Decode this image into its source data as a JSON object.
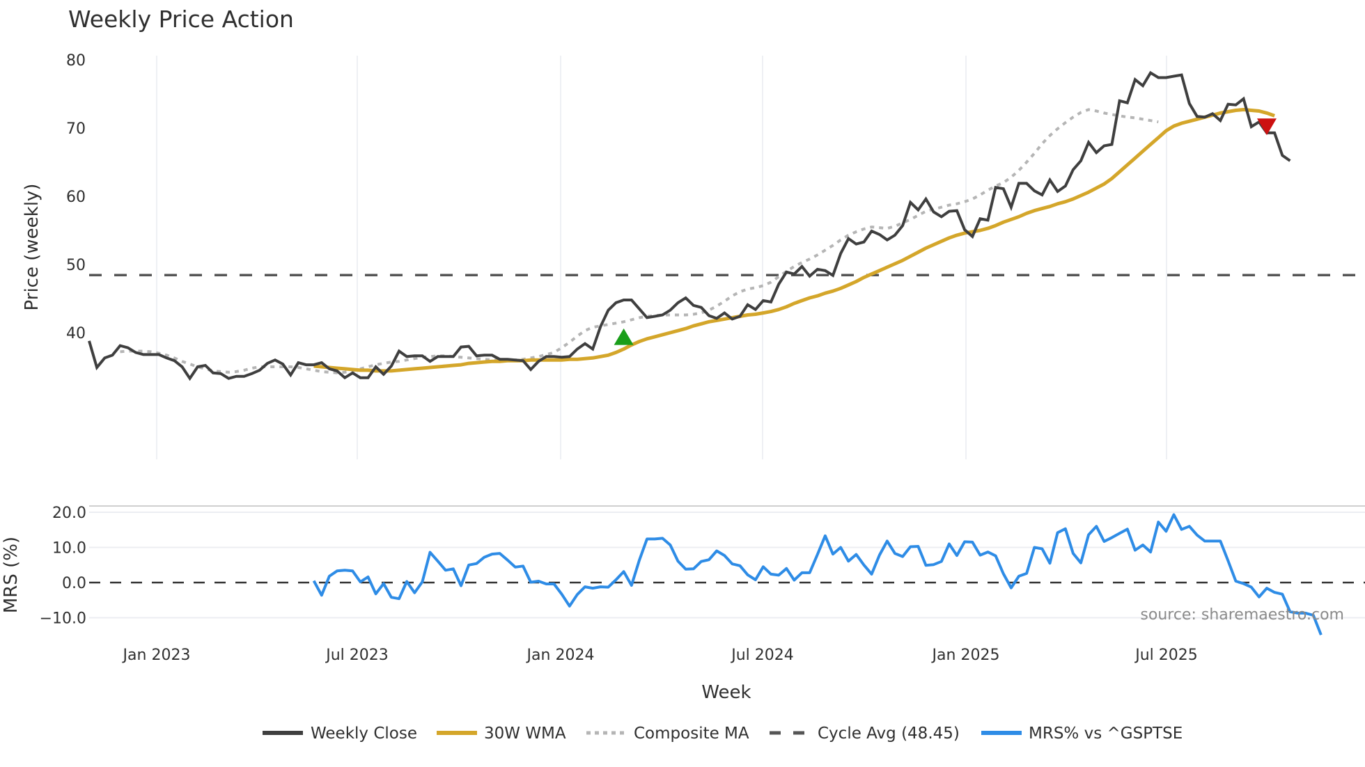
{
  "chart_data": [
    {
      "type": "line",
      "title": "Weekly Price Action",
      "xlabel": "Week",
      "ylabel": "Price (weekly)",
      "ylim": [
        31,
        81
      ],
      "yticks": [
        40,
        50,
        60,
        70,
        80
      ],
      "xticks": [
        "Jan 2023",
        "Jul 2023",
        "Jan 2024",
        "Jul 2024",
        "Jan 2025",
        "Jul 2025"
      ],
      "grid": true,
      "start_week": "2022-11-04",
      "series": [
        {
          "name": "Weekly Close",
          "color": "#3f3f3f",
          "start_index": 0,
          "values": [
            38.8,
            34.9,
            36.3,
            36.7,
            38.1,
            37.8,
            37.1,
            36.8,
            36.8,
            36.8,
            36.3,
            35.9,
            35,
            33.3,
            35,
            35.2,
            34.1,
            34,
            33.3,
            33.6,
            33.6,
            34,
            34.5,
            35.5,
            36,
            35.4,
            33.8,
            35.6,
            35.3,
            35.3,
            35.6,
            34.7,
            34.4,
            33.4,
            34.1,
            33.4,
            33.4,
            35,
            33.9,
            35.1,
            37.3,
            36.5,
            36.6,
            36.6,
            35.8,
            36.5,
            36.5,
            36.5,
            37.9,
            38,
            36.6,
            36.7,
            36.7,
            36.1,
            36.1,
            36,
            35.9,
            34.6,
            35.8,
            36.5,
            36.5,
            36.4,
            36.5,
            37.6,
            38.4,
            37.6,
            40.9,
            43.3,
            44.4,
            44.8,
            44.8,
            43.5,
            42.2,
            42.4,
            42.6,
            43.3,
            44.4,
            45.1,
            44,
            43.7,
            42.5,
            42.1,
            42.9,
            42,
            42.4,
            44.1,
            43.4,
            44.7,
            44.5,
            47.1,
            48.9,
            48.6,
            49.7,
            48.3,
            49.3,
            49.1,
            48.4,
            51.6,
            53.8,
            53,
            53.3,
            54.9,
            54.4,
            53.6,
            54.3,
            55.7,
            59.1,
            58,
            59.6,
            57.7,
            57,
            57.8,
            57.9,
            55.1,
            54.1,
            56.7,
            56.5,
            61.3,
            61.1,
            58.4,
            61.9,
            61.9,
            60.8,
            60.2,
            62.4,
            60.7,
            61.5,
            63.9,
            65.2,
            67.9,
            66.4,
            67.4,
            67.6,
            74,
            73.7,
            77.1,
            76.2,
            78.1,
            77.4,
            77.4,
            77.6,
            77.8,
            73.6,
            71.7,
            71.6,
            72.1,
            71.1,
            73.5,
            73.4,
            74.3,
            70.2,
            70.9,
            69.3,
            69.3,
            66,
            65.2
          ]
        },
        {
          "name": "30W WMA",
          "color": "#d4a62a",
          "start_index": 29,
          "values": [
            35.1,
            35,
            34.9,
            34.8,
            34.7,
            34.6,
            34.5,
            34.5,
            34.4,
            34.4,
            34.4,
            34.5,
            34.6,
            34.7,
            34.8,
            34.9,
            35,
            35.1,
            35.2,
            35.3,
            35.5,
            35.6,
            35.7,
            35.8,
            35.8,
            35.9,
            35.9,
            35.9,
            36,
            36,
            36,
            36,
            36,
            36.1,
            36.1,
            36.2,
            36.3,
            36.5,
            36.7,
            37.1,
            37.6,
            38.2,
            38.7,
            39.1,
            39.4,
            39.7,
            40,
            40.3,
            40.6,
            41,
            41.3,
            41.6,
            41.8,
            42,
            42.2,
            42.4,
            42.6,
            42.7,
            42.9,
            43.1,
            43.4,
            43.8,
            44.3,
            44.7,
            45.1,
            45.4,
            45.8,
            46.1,
            46.5,
            47,
            47.5,
            48.1,
            48.6,
            49.1,
            49.6,
            50.1,
            50.6,
            51.2,
            51.8,
            52.4,
            52.9,
            53.4,
            53.9,
            54.3,
            54.6,
            54.8,
            55,
            55.3,
            55.7,
            56.2,
            56.6,
            57,
            57.5,
            57.9,
            58.2,
            58.5,
            58.9,
            59.2,
            59.6,
            60.1,
            60.6,
            61.2,
            61.8,
            62.6,
            63.6,
            64.6,
            65.6,
            66.6,
            67.6,
            68.6,
            69.6,
            70.3,
            70.7,
            71,
            71.3,
            71.6,
            71.9,
            72.2,
            72.4,
            72.6,
            72.7,
            72.6,
            72.5,
            72.2,
            71.8
          ]
        },
        {
          "name": "Composite MA",
          "color": "#b5b5b5",
          "start_index": 4,
          "values": [
            37.2,
            37.3,
            37.3,
            37.3,
            37.2,
            37,
            36.7,
            36.3,
            35.8,
            35.4,
            35,
            34.7,
            34.4,
            34.3,
            34.2,
            34.3,
            34.5,
            34.8,
            35,
            35,
            35,
            35,
            35,
            34.9,
            34.7,
            34.5,
            34.3,
            34.2,
            34.1,
            34.2,
            34.4,
            34.7,
            35,
            35.3,
            35.5,
            35.7,
            35.8,
            36,
            36.2,
            36.4,
            36.5,
            36.6,
            36.6,
            36.5,
            36.4,
            36.3,
            36.2,
            36.1,
            36,
            36,
            35.9,
            36,
            36.1,
            36.3,
            36.5,
            36.8,
            37.1,
            37.8,
            38.6,
            39.5,
            40.3,
            40.8,
            41,
            41.2,
            41.4,
            41.6,
            41.9,
            42.2,
            42.4,
            42.5,
            42.6,
            42.6,
            42.6,
            42.6,
            42.7,
            42.9,
            43.3,
            43.9,
            44.6,
            45.4,
            46,
            46.4,
            46.6,
            46.9,
            47.4,
            48.2,
            49,
            49.7,
            50.3,
            50.8,
            51.4,
            52.1,
            52.8,
            53.6,
            54.3,
            54.8,
            55.2,
            55.5,
            55.4,
            55.3,
            55.6,
            56.1,
            56.6,
            57.2,
            57.8,
            58.1,
            58.4,
            58.7,
            58.9,
            59.2,
            59.6,
            60.2,
            60.9,
            61.5,
            62,
            62.8,
            63.8,
            65,
            66.3,
            67.7,
            68.9,
            69.9,
            70.8,
            71.6,
            72.3,
            72.7,
            72.5,
            72.2,
            72,
            71.8,
            71.6,
            71.5,
            71.3,
            71.1,
            70.9
          ]
        },
        {
          "name": "Cycle Avg (48.45)",
          "color": "#555555",
          "constant": 48.45
        }
      ],
      "markers": [
        {
          "type": "buy",
          "shape": "triangle-up",
          "color": "#1a9e1a",
          "week_index": 69,
          "value": 39.2
        },
        {
          "type": "sell",
          "shape": "triangle-down",
          "color": "#cc1111",
          "week_index": 152,
          "value": 70.4
        }
      ]
    },
    {
      "type": "line",
      "title": "",
      "xlabel": "Week",
      "ylabel": "MRS (%)",
      "ylim": [
        -15.5,
        22
      ],
      "yticks": [
        -10.0,
        0.0,
        10.0,
        20.0
      ],
      "ytick_labels": [
        "−10.0",
        "0.0",
        "10.0",
        "20.0"
      ],
      "grid": true,
      "series": [
        {
          "name": "MRS% vs ^GSPTSE",
          "color": "#2e8ce6",
          "start_index": 29,
          "values": [
            0.5,
            -3.6,
            1.8,
            3.3,
            3.5,
            3.3,
            0.2,
            1.6,
            -3.2,
            -0.3,
            -4.2,
            -4.6,
            0.3,
            -2.9,
            0.2,
            8.6,
            6.1,
            3.5,
            3.9,
            -0.9,
            5,
            5.4,
            7.2,
            8.1,
            8.3,
            6.4,
            4.4,
            4.7,
            0.1,
            0.4,
            -0.4,
            -0.4,
            -3.3,
            -6.7,
            -3.4,
            -1.2,
            -1.6,
            -1.2,
            -1.3,
            0.8,
            3.1,
            -0.8,
            6.3,
            12.4,
            12.4,
            12.6,
            10.7,
            6.1,
            3.8,
            3.9,
            6,
            6.5,
            9,
            7.7,
            5.3,
            4.8,
            2.2,
            0.8,
            4.5,
            2.4,
            2.1,
            4,
            0.7,
            2.8,
            2.8,
            8,
            13.3,
            8.1,
            10,
            6.1,
            8,
            5,
            2.4,
            7.8,
            11.8,
            8.3,
            7.4,
            10.2,
            10.3,
            4.9,
            5.1,
            6,
            11,
            7.7,
            11.6,
            11.5,
            7.8,
            8.7,
            7.6,
            2.5,
            -1.5,
            1.8,
            2.6,
            10,
            9.6,
            5.5,
            14.2,
            15.3,
            8.3,
            5.6,
            13.6,
            16,
            11.7,
            12.8,
            14,
            15.2,
            9.2,
            10.7,
            8.7,
            17.2,
            14.6,
            19.3,
            15.1,
            16,
            13.5,
            11.8,
            11.8,
            11.8,
            6.2,
            0.4,
            -0.3,
            -1.3,
            -4.1,
            -1.6,
            -2.8,
            -3.3,
            -8.3,
            -8.7,
            -8.7,
            -9.3,
            -14.9
          ]
        },
        {
          "name": "zero-line",
          "color": "#333333",
          "constant": 0.0
        }
      ]
    }
  ],
  "header": {
    "title": "Weekly Price Action"
  },
  "axes": {
    "price_ylabel": "Price (weekly)",
    "mrs_ylabel": "MRS (%)",
    "xlabel": "Week"
  },
  "legend": {
    "items": [
      {
        "label": "Weekly Close",
        "style": "solid",
        "color": "#3f3f3f"
      },
      {
        "label": "30W WMA",
        "style": "solid",
        "color": "#d4a62a"
      },
      {
        "label": "Composite MA",
        "style": "dotted",
        "color": "#b5b5b5"
      },
      {
        "label": "Cycle Avg (48.45)",
        "style": "dashed",
        "color": "#555555"
      },
      {
        "label": "MRS% vs ^GSPTSE",
        "style": "solid",
        "color": "#2e8ce6"
      }
    ]
  },
  "source": "source: sharemaestro.com"
}
